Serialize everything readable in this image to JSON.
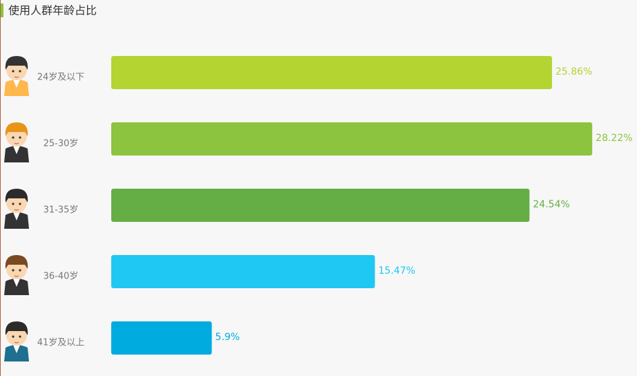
{
  "chart_data": {
    "type": "bar",
    "orientation": "horizontal",
    "title": "使用人群年龄占比",
    "categories": [
      "24岁及以下",
      "25-30岁",
      "31-35岁",
      "36-40岁",
      "41岁及以上"
    ],
    "values": [
      25.86,
      28.22,
      24.54,
      15.47,
      5.9
    ],
    "value_labels": [
      "25.86%",
      "28.22%",
      "24.54%",
      "15.47%",
      "5.9%"
    ],
    "colors": [
      "#b4d431",
      "#8cc43f",
      "#65ae45",
      "#1fc8f3",
      "#00abdf"
    ]
  }
}
